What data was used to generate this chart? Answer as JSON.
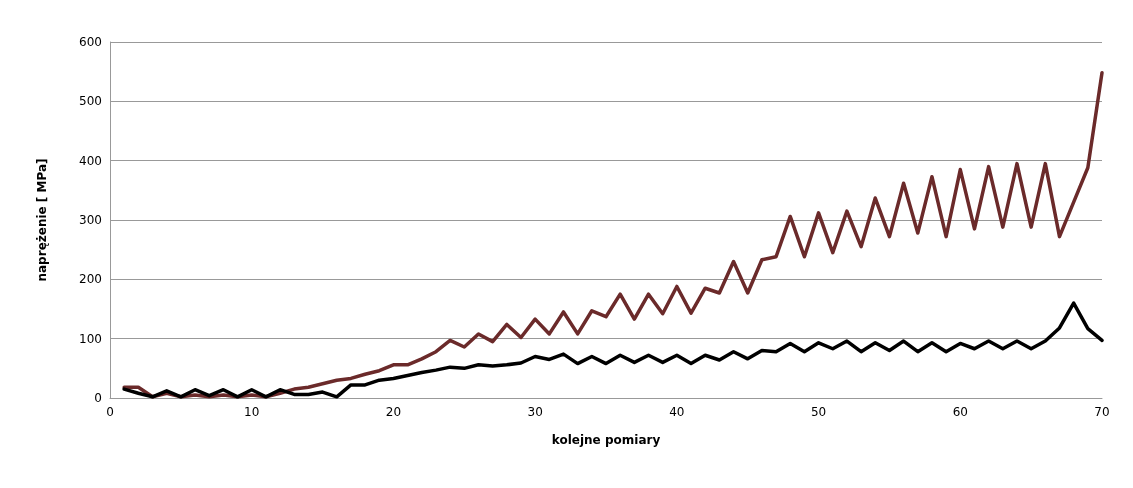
{
  "chart_data": {
    "type": "line",
    "xlabel": "kolejne pomiary",
    "ylabel": "naprężenie [ MPa]",
    "x": [
      1,
      2,
      3,
      4,
      5,
      6,
      7,
      8,
      9,
      10,
      11,
      12,
      13,
      14,
      15,
      16,
      17,
      18,
      19,
      20,
      21,
      22,
      23,
      24,
      25,
      26,
      27,
      28,
      29,
      30,
      31,
      32,
      33,
      34,
      35,
      36,
      37,
      38,
      39,
      40,
      41,
      42,
      43,
      44,
      45,
      46,
      47,
      48,
      49,
      50,
      51,
      52,
      53,
      54,
      55,
      56,
      57,
      58,
      59,
      60,
      61,
      62,
      63,
      64,
      65,
      66,
      67,
      68,
      69,
      70
    ],
    "series": [
      {
        "color": "#6b2a2a",
        "values": [
          18,
          18,
          2,
          8,
          2,
          5,
          2,
          5,
          2,
          5,
          2,
          8,
          15,
          18,
          24,
          30,
          33,
          40,
          46,
          56,
          56,
          66,
          78,
          97,
          86,
          108,
          95,
          124,
          102,
          133,
          108,
          145,
          108,
          147,
          137,
          175,
          133,
          175,
          142,
          188,
          143,
          185,
          177,
          230,
          177,
          233,
          238,
          306,
          238,
          312,
          245,
          315,
          255,
          337,
          272,
          362,
          278,
          373,
          272,
          385,
          285,
          390,
          288,
          395,
          288,
          395,
          272,
          330,
          388,
          548
        ]
      },
      {
        "color": "#000000",
        "values": [
          15,
          8,
          2,
          12,
          2,
          14,
          4,
          14,
          2,
          14,
          2,
          14,
          6,
          6,
          10,
          2,
          22,
          22,
          30,
          33,
          38,
          43,
          47,
          52,
          50,
          56,
          54,
          56,
          59,
          70,
          65,
          74,
          58,
          70,
          58,
          72,
          60,
          72,
          60,
          72,
          58,
          72,
          64,
          78,
          66,
          80,
          78,
          92,
          78,
          93,
          83,
          96,
          78,
          93,
          80,
          96,
          78,
          93,
          78,
          92,
          83,
          96,
          83,
          96,
          83,
          96,
          118,
          160,
          117,
          97
        ]
      }
    ],
    "xlim": [
      0,
      70
    ],
    "xticks": [
      0,
      10,
      20,
      30,
      40,
      50,
      60,
      70
    ],
    "ylim": [
      0,
      600
    ],
    "yticks": [
      0,
      100,
      200,
      300,
      400,
      500,
      600
    ],
    "grid": "y",
    "marker": "none",
    "line_style": "solid"
  }
}
